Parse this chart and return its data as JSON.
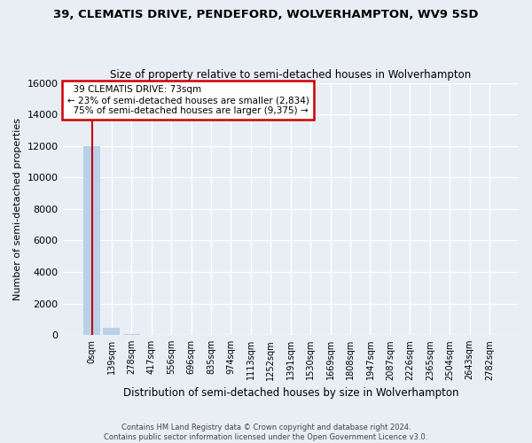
{
  "title_line1": "39, CLEMATIS DRIVE, PENDEFORD, WOLVERHAMPTON, WV9 5SD",
  "title_line2": "Size of property relative to semi-detached houses in Wolverhampton",
  "xlabel": "Distribution of semi-detached houses by size in Wolverhampton",
  "ylabel": "Number of semi-detached properties",
  "bar_labels": [
    "0sqm",
    "139sqm",
    "278sqm",
    "417sqm",
    "556sqm",
    "696sqm",
    "835sqm",
    "974sqm",
    "1113sqm",
    "1252sqm",
    "1391sqm",
    "1530sqm",
    "1669sqm",
    "1808sqm",
    "1947sqm",
    "2087sqm",
    "2226sqm",
    "2365sqm",
    "2504sqm",
    "2643sqm",
    "2782sqm"
  ],
  "bar_values": [
    12000,
    450,
    80,
    0,
    0,
    0,
    0,
    0,
    0,
    0,
    0,
    0,
    0,
    0,
    0,
    0,
    0,
    0,
    0,
    0,
    0
  ],
  "bar_color_default": "#b8d0e8",
  "ylim": [
    0,
    16000
  ],
  "yticks": [
    0,
    2000,
    4000,
    6000,
    8000,
    10000,
    12000,
    14000,
    16000
  ],
  "property_size": "73sqm",
  "property_name": "39 CLEMATIS DRIVE",
  "pct_smaller": 23,
  "count_smaller": "2,834",
  "pct_larger": 75,
  "count_larger": "9,375",
  "annotation_box_color": "#ffffff",
  "annotation_box_edge": "#cc0000",
  "property_line_color": "#cc0000",
  "footer_line1": "Contains HM Land Registry data © Crown copyright and database right 2024.",
  "footer_line2": "Contains public sector information licensed under the Open Government Licence v3.0.",
  "background_color": "#e8eef4",
  "grid_color": "#ffffff"
}
